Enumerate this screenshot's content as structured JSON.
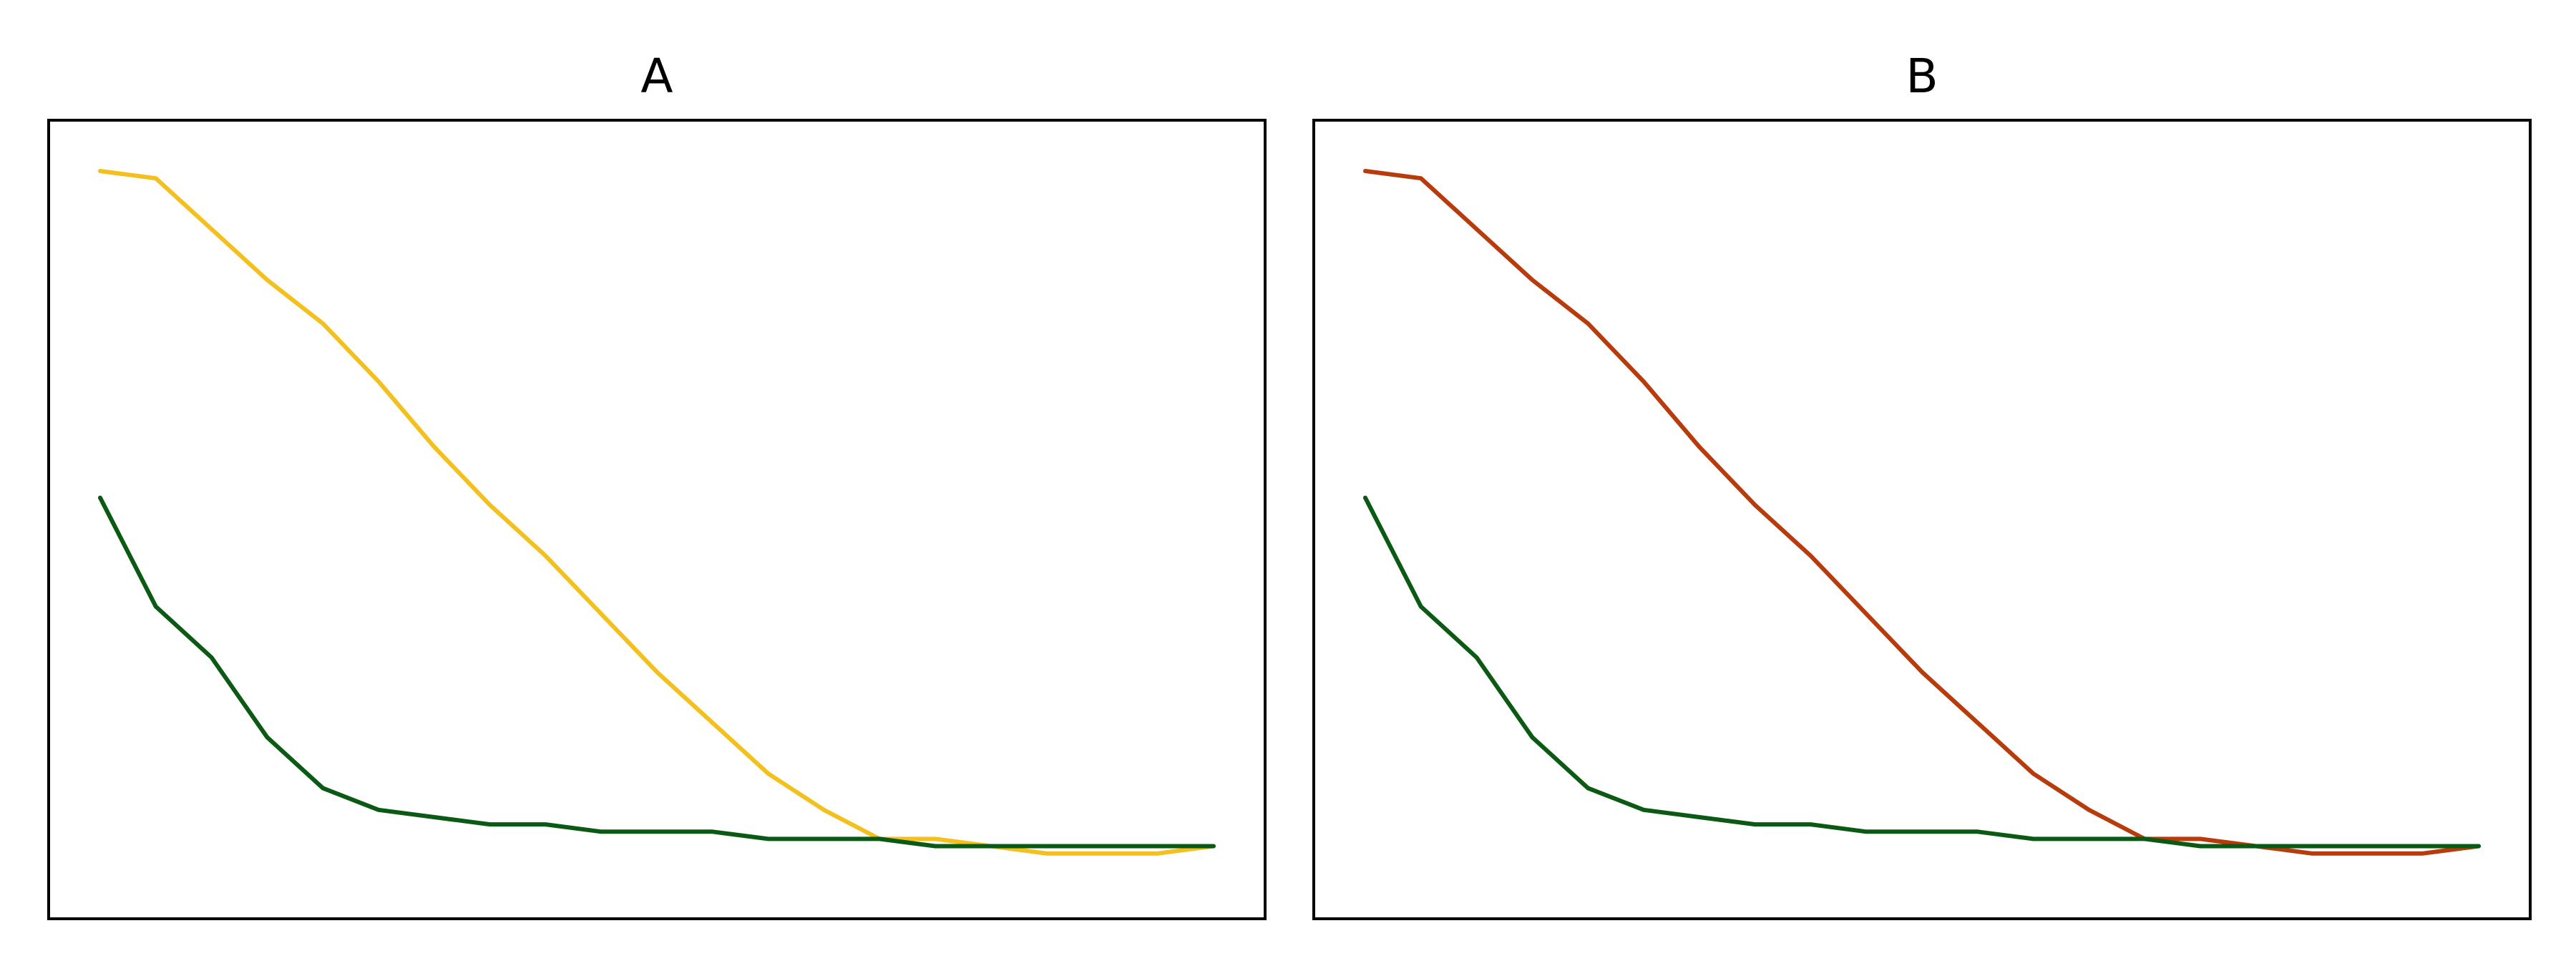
{
  "chart_data": [
    {
      "type": "line",
      "title": "A",
      "xlabel": "",
      "ylabel": "",
      "xlim": [
        0,
        200
      ],
      "ylim": [
        -0.05,
        1.05
      ],
      "grid": false,
      "ticks": false,
      "series": [
        {
          "color": "#f4c01e",
          "x": [
            0,
            10,
            20,
            30,
            40,
            50,
            60,
            70,
            80,
            90,
            100,
            110,
            120,
            130,
            140,
            150,
            160,
            170,
            180,
            190,
            200
          ],
          "y": [
            0.98,
            0.97,
            0.9,
            0.83,
            0.77,
            0.69,
            0.6,
            0.52,
            0.45,
            0.37,
            0.29,
            0.22,
            0.15,
            0.1,
            0.06,
            0.06,
            0.05,
            0.04,
            0.04,
            0.04,
            0.05
          ]
        },
        {
          "color": "#0b5a14",
          "x": [
            0,
            10,
            20,
            30,
            40,
            50,
            60,
            70,
            80,
            90,
            100,
            110,
            120,
            130,
            140,
            150,
            160,
            170,
            180,
            190,
            200
          ],
          "y": [
            0.53,
            0.38,
            0.31,
            0.2,
            0.13,
            0.1,
            0.09,
            0.08,
            0.08,
            0.07,
            0.07,
            0.07,
            0.06,
            0.06,
            0.06,
            0.05,
            0.05,
            0.05,
            0.05,
            0.05,
            0.05
          ]
        }
      ]
    },
    {
      "type": "line",
      "title": "B",
      "xlabel": "",
      "ylabel": "",
      "xlim": [
        0,
        200
      ],
      "ylim": [
        -0.05,
        1.05
      ],
      "grid": false,
      "ticks": false,
      "series": [
        {
          "color": "#b83b0c",
          "x": [
            0,
            10,
            20,
            30,
            40,
            50,
            60,
            70,
            80,
            90,
            100,
            110,
            120,
            130,
            140,
            150,
            160,
            170,
            180,
            190,
            200
          ],
          "y": [
            0.98,
            0.97,
            0.9,
            0.83,
            0.77,
            0.69,
            0.6,
            0.52,
            0.45,
            0.37,
            0.29,
            0.22,
            0.15,
            0.1,
            0.06,
            0.06,
            0.05,
            0.04,
            0.04,
            0.04,
            0.05
          ]
        },
        {
          "color": "#0b5a14",
          "x": [
            0,
            10,
            20,
            30,
            40,
            50,
            60,
            70,
            80,
            90,
            100,
            110,
            120,
            130,
            140,
            150,
            160,
            170,
            180,
            190,
            200
          ],
          "y": [
            0.53,
            0.38,
            0.31,
            0.2,
            0.13,
            0.1,
            0.09,
            0.08,
            0.08,
            0.07,
            0.07,
            0.07,
            0.06,
            0.06,
            0.06,
            0.05,
            0.05,
            0.05,
            0.05,
            0.05,
            0.05
          ]
        }
      ]
    }
  ]
}
